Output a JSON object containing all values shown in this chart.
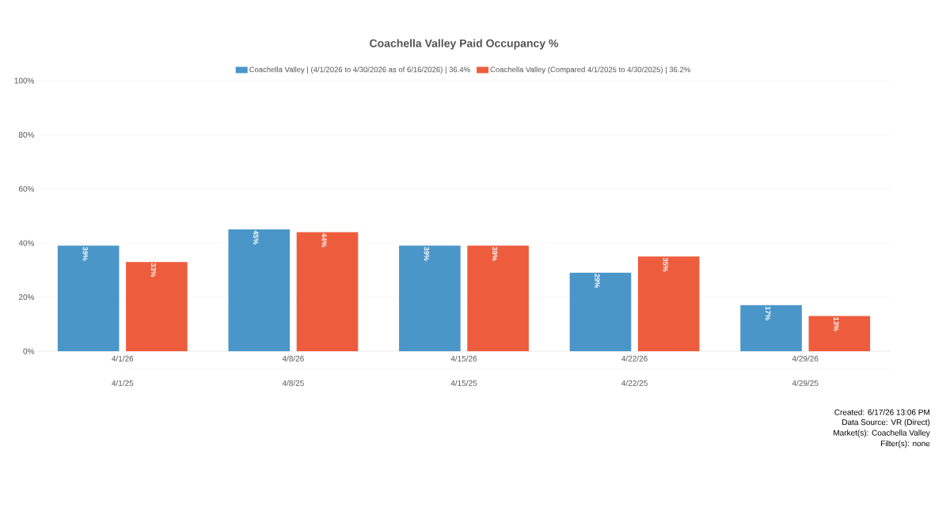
{
  "chart_data": {
    "type": "bar",
    "title": "Coachella Valley Paid Occupancy %",
    "categories": [
      "4/1/26",
      "4/8/26",
      "4/15/26",
      "4/22/26",
      "4/29/26"
    ],
    "series": [
      {
        "name": "Coachella Valley | (4/1/2026 to 4/30/2026 as of 6/16/2026) | 36.4%",
        "color": "#4a96c8",
        "values": [
          39,
          45,
          39,
          29,
          17
        ],
        "value_labels": [
          "39%",
          "45%",
          "39%",
          "29%",
          "17%"
        ]
      },
      {
        "name": "Coachella Valley (Compared 4/1/2025 to 4/30/2025) | 36.2%",
        "color": "#ee5c3e",
        "values": [
          33,
          44,
          39,
          35,
          13
        ],
        "value_labels": [
          "33%",
          "44%",
          "39%",
          "35%",
          "13%"
        ]
      }
    ],
    "ylim": [
      0,
      100
    ],
    "yticks": [
      {
        "value": 0,
        "label": "0%"
      },
      {
        "value": 20,
        "label": "20%"
      },
      {
        "value": 40,
        "label": "40%"
      },
      {
        "value": 60,
        "label": "60%"
      },
      {
        "value": 80,
        "label": "80%"
      },
      {
        "value": 100,
        "label": "100%"
      }
    ],
    "grid": "y",
    "legend": "top",
    "annotations": [
      "4/1/25",
      "4/8/25",
      "4/15/25",
      "4/22/25",
      "4/29/25",
      "Created: 6/17/26 13:06 PM",
      "Data Source: VR (Direct)",
      "Market(s):  Coachella Valley",
      "Filter(s): none"
    ]
  }
}
